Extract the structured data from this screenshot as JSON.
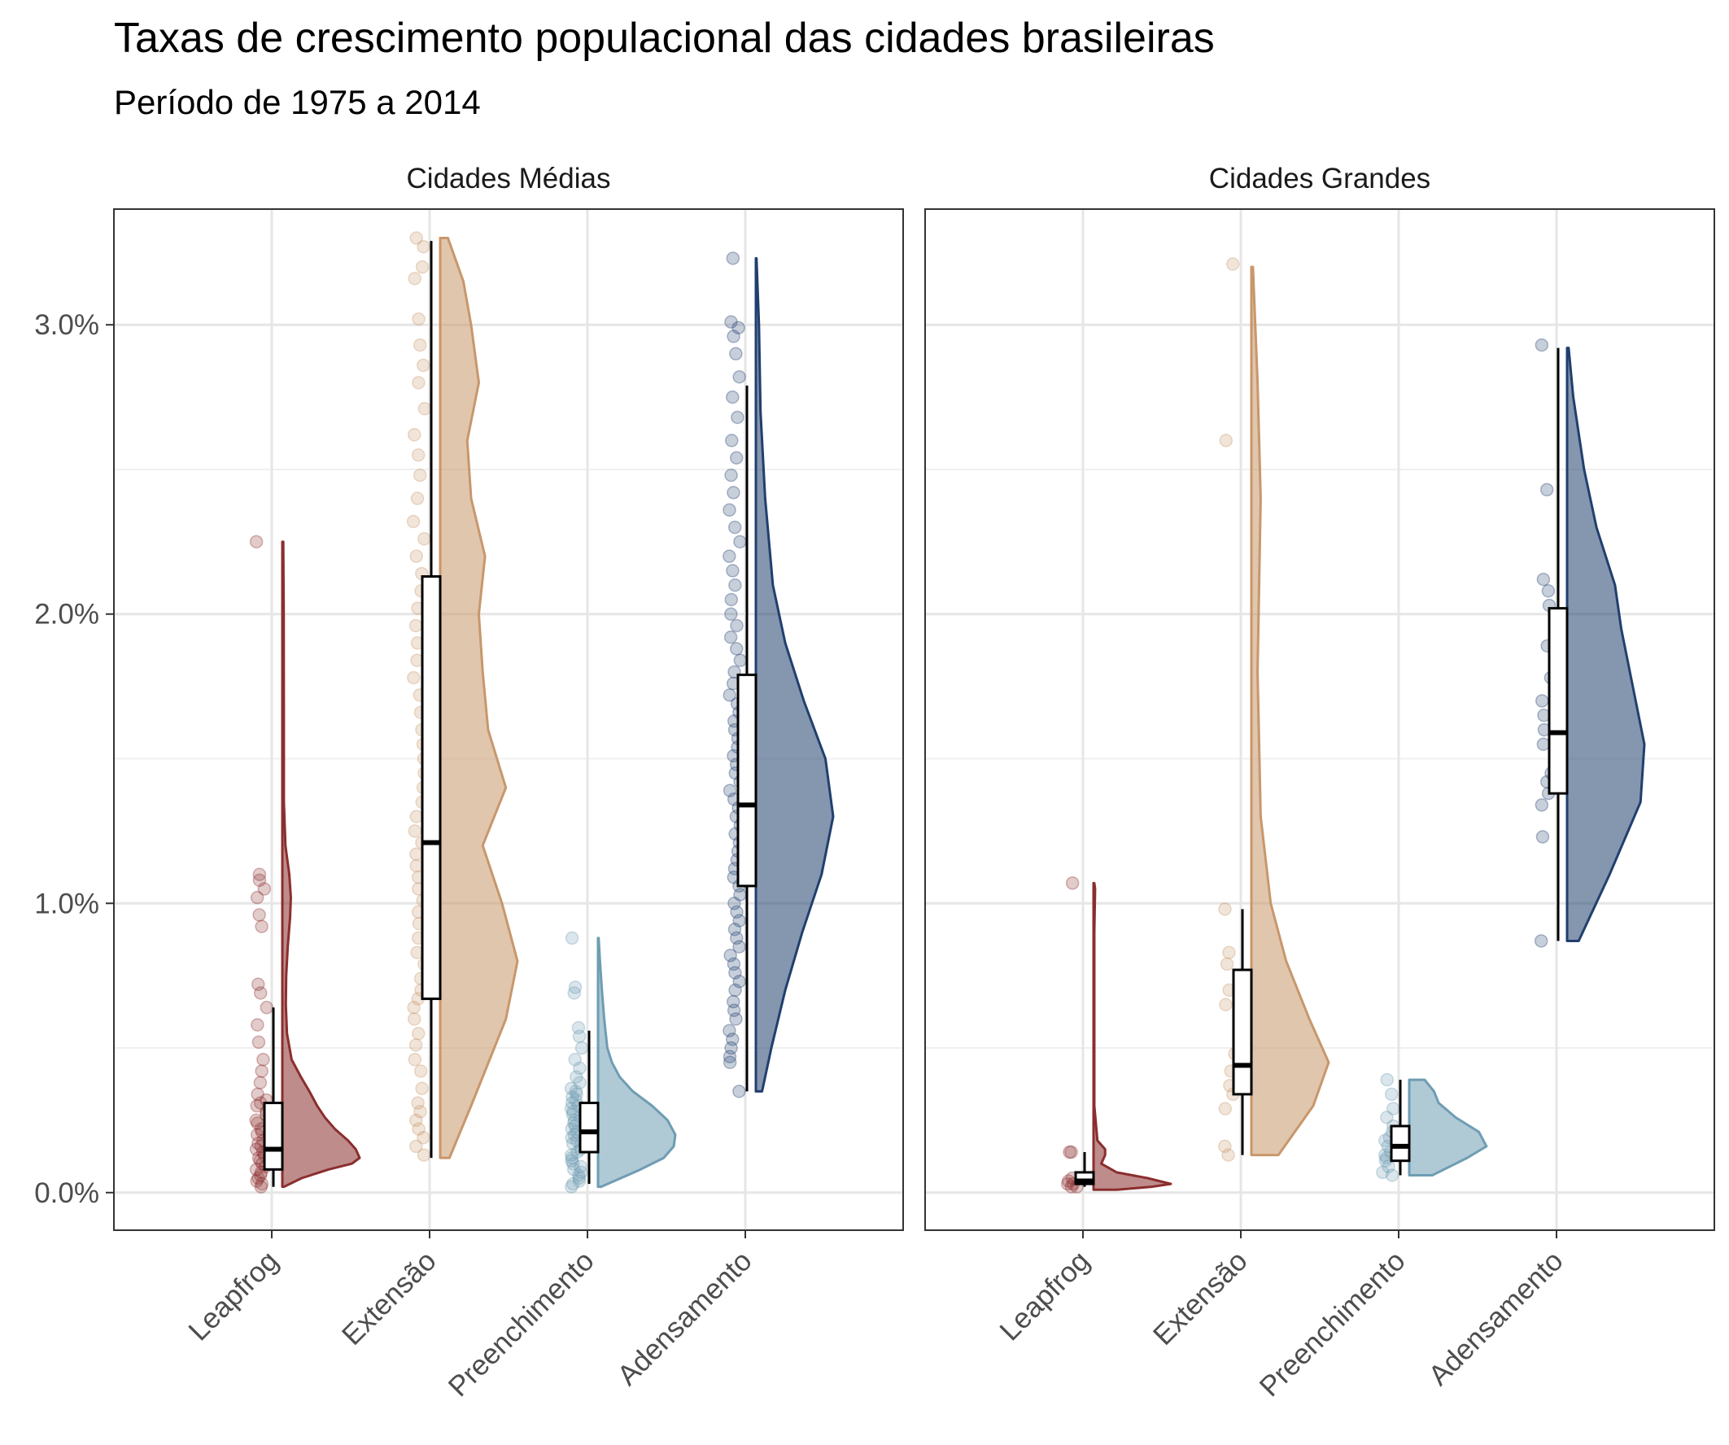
{
  "chart_data": {
    "type": "raincloud",
    "title": "Taxas de crescimento populacional das cidades brasileiras",
    "subtitle": "Período de 1975 a 2014",
    "ylim": [
      -0.0013,
      0.034
    ],
    "yticks": [
      0.0,
      0.01,
      0.02,
      0.03
    ],
    "ytick_labels": [
      "0.0%",
      "1.0%",
      "2.0%",
      "3.0%"
    ],
    "categories": [
      "Leapfrog",
      "Extensão",
      "Preenchimento",
      "Adensamento"
    ],
    "colors": {
      "Leapfrog": "#8B2E2E",
      "Extensão": "#C8976B",
      "Preenchimento": "#6E9DB3",
      "Adensamento": "#213F6E"
    },
    "grid": true,
    "legend": "none",
    "panels": [
      {
        "name": "Cidades Médias",
        "groups": [
          {
            "category": "Leapfrog",
            "box": {
              "min": 0.0002,
              "q1": 0.0008,
              "median": 0.0015,
              "q3": 0.0031,
              "max": 0.0064
            },
            "points": [
              0.0002,
              0.0003,
              0.0004,
              0.0005,
              0.0006,
              0.0007,
              0.0008,
              0.0009,
              0.001,
              0.0011,
              0.0012,
              0.0013,
              0.0014,
              0.0015,
              0.0016,
              0.0017,
              0.0018,
              0.002,
              0.0021,
              0.0022,
              0.0024,
              0.0025,
              0.0027,
              0.0028,
              0.003,
              0.0031,
              0.0032,
              0.0034,
              0.0038,
              0.0042,
              0.0046,
              0.0052,
              0.0058,
              0.0064,
              0.0069,
              0.0072,
              0.0092,
              0.0096,
              0.0102,
              0.0105,
              0.0108,
              0.011,
              0.0225
            ],
            "density": [
              [
                0.0002,
                0.02
              ],
              [
                0.0005,
                0.25
              ],
              [
                0.0008,
                0.6
              ],
              [
                0.001,
                0.9
              ],
              [
                0.0012,
                1.0
              ],
              [
                0.0015,
                0.95
              ],
              [
                0.0018,
                0.85
              ],
              [
                0.0022,
                0.68
              ],
              [
                0.0026,
                0.55
              ],
              [
                0.003,
                0.45
              ],
              [
                0.0035,
                0.35
              ],
              [
                0.004,
                0.24
              ],
              [
                0.0046,
                0.12
              ],
              [
                0.0055,
                0.06
              ],
              [
                0.0065,
                0.045
              ],
              [
                0.0075,
                0.05
              ],
              [
                0.0085,
                0.07
              ],
              [
                0.0095,
                0.1
              ],
              [
                0.0102,
                0.11
              ],
              [
                0.011,
                0.09
              ],
              [
                0.012,
                0.04
              ],
              [
                0.0135,
                0.02
              ],
              [
                0.016,
                0.02
              ],
              [
                0.02,
                0.018
              ],
              [
                0.0225,
                0.012
              ]
            ]
          },
          {
            "category": "Extensão",
            "box": {
              "min": 0.0012,
              "q1": 0.0067,
              "median": 0.0121,
              "q3": 0.0213,
              "max": 0.0329
            },
            "points": [
              0.0013,
              0.0016,
              0.0019,
              0.0022,
              0.0025,
              0.0028,
              0.0031,
              0.0036,
              0.0042,
              0.0046,
              0.0051,
              0.0055,
              0.006,
              0.0064,
              0.0067,
              0.007,
              0.0074,
              0.0079,
              0.0083,
              0.0088,
              0.0093,
              0.0097,
              0.0101,
              0.0105,
              0.0109,
              0.0113,
              0.0117,
              0.0121,
              0.0125,
              0.013,
              0.0135,
              0.014,
              0.0145,
              0.015,
              0.0155,
              0.016,
              0.0166,
              0.0172,
              0.0178,
              0.0184,
              0.019,
              0.0196,
              0.0202,
              0.0208,
              0.0214,
              0.022,
              0.0226,
              0.0232,
              0.024,
              0.0248,
              0.0255,
              0.0262,
              0.0271,
              0.028,
              0.0286,
              0.0293,
              0.0302,
              0.0316,
              0.032,
              0.0327,
              0.033
            ],
            "density": [
              [
                0.0012,
                0.12
              ],
              [
                0.003,
                0.4
              ],
              [
                0.006,
                0.85
              ],
              [
                0.008,
                1.0
              ],
              [
                0.01,
                0.8
              ],
              [
                0.012,
                0.55
              ],
              [
                0.014,
                0.85
              ],
              [
                0.016,
                0.62
              ],
              [
                0.018,
                0.55
              ],
              [
                0.02,
                0.5
              ],
              [
                0.022,
                0.58
              ],
              [
                0.024,
                0.4
              ],
              [
                0.026,
                0.35
              ],
              [
                0.028,
                0.5
              ],
              [
                0.03,
                0.4
              ],
              [
                0.0315,
                0.3
              ],
              [
                0.033,
                0.1
              ]
            ]
          },
          {
            "category": "Preenchimento",
            "box": {
              "min": 0.0003,
              "q1": 0.0014,
              "median": 0.0021,
              "q3": 0.0031,
              "max": 0.0056
            },
            "points": [
              0.0002,
              0.0003,
              0.0004,
              0.0005,
              0.0006,
              0.0007,
              0.0008,
              0.0009,
              0.001,
              0.0011,
              0.0012,
              0.0013,
              0.0014,
              0.0015,
              0.0016,
              0.0017,
              0.0018,
              0.0019,
              0.002,
              0.0021,
              0.0022,
              0.0023,
              0.0024,
              0.0025,
              0.0026,
              0.0027,
              0.0028,
              0.0029,
              0.003,
              0.0031,
              0.0032,
              0.0033,
              0.0034,
              0.0035,
              0.0036,
              0.0038,
              0.004,
              0.0043,
              0.0046,
              0.005,
              0.0054,
              0.0057,
              0.0069,
              0.0071,
              0.0088
            ],
            "density": [
              [
                0.0002,
                0.04
              ],
              [
                0.0008,
                0.55
              ],
              [
                0.0012,
                0.85
              ],
              [
                0.0016,
                0.98
              ],
              [
                0.002,
                1.0
              ],
              [
                0.0025,
                0.9
              ],
              [
                0.003,
                0.7
              ],
              [
                0.0035,
                0.45
              ],
              [
                0.004,
                0.28
              ],
              [
                0.0045,
                0.18
              ],
              [
                0.005,
                0.12
              ],
              [
                0.006,
                0.08
              ],
              [
                0.007,
                0.05
              ],
              [
                0.008,
                0.025
              ],
              [
                0.0088,
                0.008
              ]
            ]
          },
          {
            "category": "Adensamento",
            "box": {
              "min": 0.0035,
              "q1": 0.0106,
              "median": 0.0134,
              "q3": 0.0179,
              "max": 0.0279
            },
            "points": [
              0.0035,
              0.0045,
              0.0047,
              0.005,
              0.0053,
              0.0056,
              0.006,
              0.0063,
              0.0066,
              0.007,
              0.0073,
              0.0076,
              0.0079,
              0.0082,
              0.0085,
              0.0088,
              0.0091,
              0.0094,
              0.0097,
              0.01,
              0.0103,
              0.0106,
              0.0109,
              0.0112,
              0.0115,
              0.0118,
              0.0121,
              0.0124,
              0.0127,
              0.013,
              0.0133,
              0.0136,
              0.0139,
              0.0142,
              0.0145,
              0.0148,
              0.0151,
              0.0154,
              0.0157,
              0.016,
              0.0163,
              0.0166,
              0.0169,
              0.0172,
              0.0176,
              0.018,
              0.0184,
              0.0188,
              0.0192,
              0.0196,
              0.02,
              0.0205,
              0.021,
              0.0215,
              0.022,
              0.0225,
              0.023,
              0.0236,
              0.0242,
              0.0248,
              0.0254,
              0.026,
              0.0268,
              0.0275,
              0.0282,
              0.029,
              0.0296,
              0.0299,
              0.0301,
              0.0323
            ],
            "density": [
              [
                0.0035,
                0.08
              ],
              [
                0.005,
                0.2
              ],
              [
                0.007,
                0.38
              ],
              [
                0.009,
                0.6
              ],
              [
                0.011,
                0.85
              ],
              [
                0.013,
                1.0
              ],
              [
                0.015,
                0.9
              ],
              [
                0.017,
                0.62
              ],
              [
                0.019,
                0.38
              ],
              [
                0.021,
                0.22
              ],
              [
                0.024,
                0.12
              ],
              [
                0.027,
                0.06
              ],
              [
                0.03,
                0.04
              ],
              [
                0.0323,
                0.008
              ]
            ]
          }
        ]
      },
      {
        "name": "Cidades Grandes",
        "groups": [
          {
            "category": "Leapfrog",
            "box": {
              "min": 0.0002,
              "q1": 0.0003,
              "median": 0.0004,
              "q3": 0.0007,
              "max": 0.0014
            },
            "points": [
              0.0002,
              0.0002,
              0.0003,
              0.0003,
              0.0004,
              0.0005,
              0.0014,
              0.0014,
              0.0107
            ],
            "density": [
              [
                0.0001,
                0.3
              ],
              [
                0.0002,
                0.75
              ],
              [
                0.0003,
                1.0
              ],
              [
                0.0005,
                0.7
              ],
              [
                0.0007,
                0.3
              ],
              [
                0.001,
                0.1
              ],
              [
                0.0013,
                0.15
              ],
              [
                0.0015,
                0.15
              ],
              [
                0.0018,
                0.05
              ],
              [
                0.003,
                0.01
              ],
              [
                0.006,
                0.01
              ],
              [
                0.009,
                0.01
              ],
              [
                0.0105,
                0.02
              ],
              [
                0.0107,
                0.01
              ]
            ]
          },
          {
            "category": "Extensão",
            "box": {
              "min": 0.0013,
              "q1": 0.0034,
              "median": 0.0044,
              "q3": 0.0077,
              "max": 0.0098
            },
            "points": [
              0.0013,
              0.0016,
              0.0029,
              0.0034,
              0.0037,
              0.0042,
              0.0048,
              0.0065,
              0.007,
              0.0079,
              0.0083,
              0.0098,
              0.026,
              0.0321
            ],
            "density": [
              [
                0.0013,
                0.35
              ],
              [
                0.003,
                0.8
              ],
              [
                0.0045,
                1.0
              ],
              [
                0.006,
                0.75
              ],
              [
                0.008,
                0.45
              ],
              [
                0.01,
                0.25
              ],
              [
                0.013,
                0.12
              ],
              [
                0.018,
                0.08
              ],
              [
                0.024,
                0.12
              ],
              [
                0.028,
                0.08
              ],
              [
                0.032,
                0.02
              ]
            ]
          },
          {
            "category": "Preenchimento",
            "box": {
              "min": 0.0006,
              "q1": 0.0011,
              "median": 0.0016,
              "q3": 0.0023,
              "max": 0.0039
            },
            "points": [
              0.0006,
              0.0007,
              0.0009,
              0.0011,
              0.0012,
              0.0013,
              0.0014,
              0.0016,
              0.0018,
              0.0019,
              0.0021,
              0.0023,
              0.0026,
              0.0029,
              0.0034,
              0.0039
            ],
            "density": [
              [
                0.0006,
                0.3
              ],
              [
                0.0012,
                0.75
              ],
              [
                0.0016,
                1.0
              ],
              [
                0.0021,
                0.9
              ],
              [
                0.0026,
                0.6
              ],
              [
                0.0031,
                0.38
              ],
              [
                0.0035,
                0.32
              ],
              [
                0.0039,
                0.2
              ]
            ]
          },
          {
            "category": "Adensamento",
            "box": {
              "min": 0.0087,
              "q1": 0.0138,
              "median": 0.0159,
              "q3": 0.0202,
              "max": 0.0292
            },
            "points": [
              0.0087,
              0.0123,
              0.0134,
              0.0138,
              0.0142,
              0.0145,
              0.0155,
              0.016,
              0.0165,
              0.017,
              0.0178,
              0.0189,
              0.0203,
              0.0208,
              0.0212,
              0.0243,
              0.0293
            ],
            "density": [
              [
                0.0087,
                0.15
              ],
              [
                0.011,
                0.55
              ],
              [
                0.0135,
                0.95
              ],
              [
                0.0155,
                1.0
              ],
              [
                0.0175,
                0.85
              ],
              [
                0.0195,
                0.7
              ],
              [
                0.021,
                0.62
              ],
              [
                0.023,
                0.38
              ],
              [
                0.025,
                0.22
              ],
              [
                0.0275,
                0.08
              ],
              [
                0.0292,
                0.02
              ]
            ]
          }
        ]
      }
    ]
  }
}
